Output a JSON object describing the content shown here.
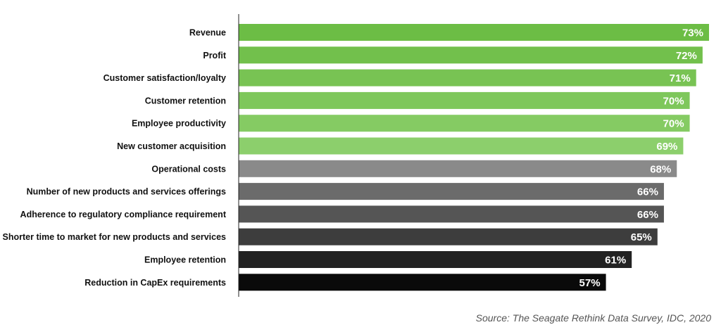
{
  "chart_data": {
    "type": "bar",
    "orientation": "horizontal",
    "categories": [
      "Revenue",
      "Profit",
      "Customer satisfaction/loyalty",
      "Customer retention",
      "Employee productivity",
      "New customer acquisition",
      "Operational costs",
      "Number of new products and services offerings",
      "Adherence to regulatory compliance requirement",
      "Shorter time to market for new products and services",
      "Employee retention",
      "Reduction in CapEx requirements"
    ],
    "values": [
      73,
      72,
      71,
      70,
      70,
      69,
      68,
      66,
      66,
      65,
      61,
      57
    ],
    "value_labels": [
      "73%",
      "72%",
      "71%",
      "70%",
      "70%",
      "69%",
      "68%",
      "66%",
      "66%",
      "65%",
      "61%",
      "57%"
    ],
    "colors": [
      "#6cbd45",
      "#72c04c",
      "#78c353",
      "#7ec75b",
      "#85cb63",
      "#8ccf6c",
      "#8a8a8a",
      "#6b6b6b",
      "#555555",
      "#3d3d3d",
      "#222222",
      "#0a0a0a"
    ],
    "title": "",
    "xlabel": "",
    "ylabel": "",
    "xlim": [
      0,
      73
    ],
    "grid": false,
    "legend": "none"
  },
  "source": "Source: The Seagate Rethink Data Survey, IDC, 2020"
}
